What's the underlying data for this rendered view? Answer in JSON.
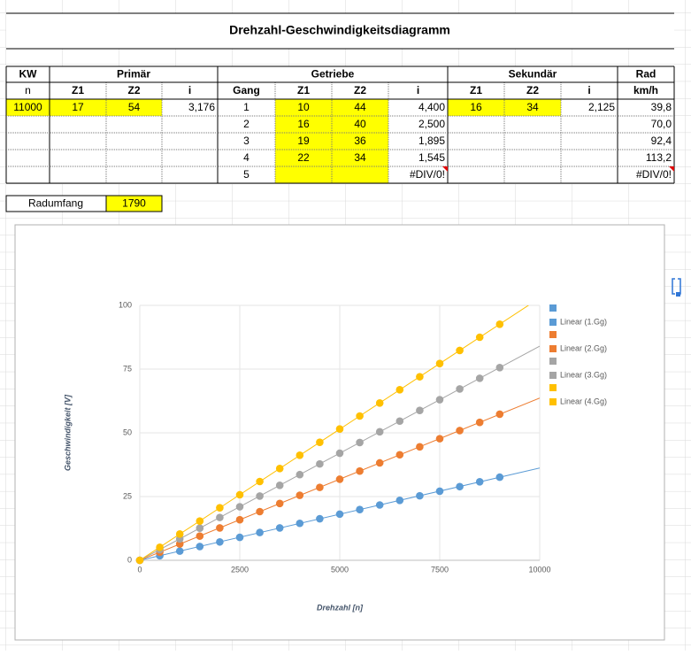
{
  "sheet": {
    "title": "Drehzahl-Geschwindigkeitsdiagramm",
    "header_groups": [
      "KW",
      "Primär",
      "Getriebe",
      "Sekundär",
      "Rad"
    ],
    "columns": [
      "n",
      "Z1",
      "Z2",
      "i",
      "Gang",
      "Z1",
      "Z2",
      "i",
      "Z1",
      "Z2",
      "i",
      "km/h"
    ],
    "rows": [
      [
        "11000",
        "17",
        "54",
        "3,176",
        "1",
        "10",
        "44",
        "4,400",
        "16",
        "34",
        "2,125",
        "39,8"
      ],
      [
        null,
        null,
        null,
        null,
        "2",
        "16",
        "40",
        "2,500",
        null,
        null,
        null,
        "70,0"
      ],
      [
        null,
        null,
        null,
        null,
        "3",
        "19",
        "36",
        "1,895",
        null,
        null,
        null,
        "92,4"
      ],
      [
        null,
        null,
        null,
        null,
        "4",
        "22",
        "34",
        "1,545",
        null,
        null,
        null,
        "113,2"
      ],
      [
        null,
        null,
        null,
        null,
        "5",
        null,
        null,
        "#DIV/0!",
        null,
        null,
        null,
        "#DIV/0!"
      ]
    ],
    "radumfang": {
      "label": "Radumfang",
      "value": "1790"
    }
  },
  "chart_data": {
    "type": "scatter",
    "xlabel": "Drehzahl [n]",
    "ylabel": "Geschwindigkeit [V]",
    "x": [
      0,
      500,
      1000,
      1500,
      2000,
      2500,
      3000,
      3500,
      4000,
      4500,
      5000,
      5500,
      6000,
      6500,
      7000,
      7500,
      8000,
      8500,
      9000
    ],
    "xlim": [
      0,
      10000
    ],
    "xticks": [
      0,
      2500,
      5000,
      7500,
      10000
    ],
    "ylim": [
      0,
      100
    ],
    "yticks": [
      0,
      25,
      50,
      75,
      100
    ],
    "grid": true,
    "series": [
      {
        "trendline": "Linear (1.Gg)",
        "color": "#5b9bd5",
        "values": [
          0,
          1.8,
          3.6,
          5.4,
          7.2,
          9.0,
          10.9,
          12.7,
          14.5,
          16.3,
          18.1,
          19.9,
          21.7,
          23.5,
          25.3,
          27.1,
          28.9,
          30.8,
          32.6
        ]
      },
      {
        "trendline": "Linear (2.Gg)",
        "color": "#ed7d31",
        "values": [
          0,
          3.2,
          6.4,
          9.5,
          12.7,
          15.9,
          19.1,
          22.3,
          25.5,
          28.6,
          31.8,
          35.0,
          38.2,
          41.4,
          44.5,
          47.7,
          50.9,
          54.1,
          57.3
        ]
      },
      {
        "trendline": "Linear (3.Gg)",
        "color": "#a5a5a5",
        "values": [
          0,
          4.2,
          8.4,
          12.6,
          16.8,
          21.0,
          25.2,
          29.4,
          33.6,
          37.8,
          42.0,
          46.2,
          50.4,
          54.6,
          58.8,
          63.0,
          67.2,
          71.4,
          75.6
        ]
      },
      {
        "trendline": "Linear (4.Gg)",
        "color": "#ffc000",
        "values": [
          0,
          5.1,
          10.3,
          15.4,
          20.6,
          25.7,
          30.9,
          36.0,
          41.2,
          46.3,
          51.5,
          56.6,
          61.7,
          66.9,
          72.0,
          77.2,
          82.3,
          87.5,
          92.6
        ]
      }
    ]
  }
}
